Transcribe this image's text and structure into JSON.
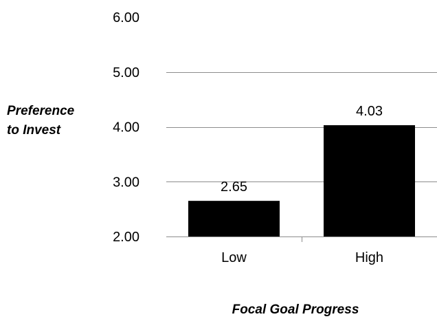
{
  "chart_data": {
    "type": "bar",
    "categories": [
      "Low",
      "High"
    ],
    "values": [
      2.65,
      4.03
    ],
    "data_labels": [
      "2.65",
      "4.03"
    ],
    "tick_labels": [
      "2.00",
      "3.00",
      "4.00",
      "5.00",
      "6.00"
    ],
    "ylim": [
      2,
      6
    ],
    "ylabel_lines": [
      "Preference",
      "to Invest"
    ],
    "xlabel": "Focal Goal Progress",
    "grid": true,
    "bar_color": "#000000",
    "legend": "none"
  }
}
